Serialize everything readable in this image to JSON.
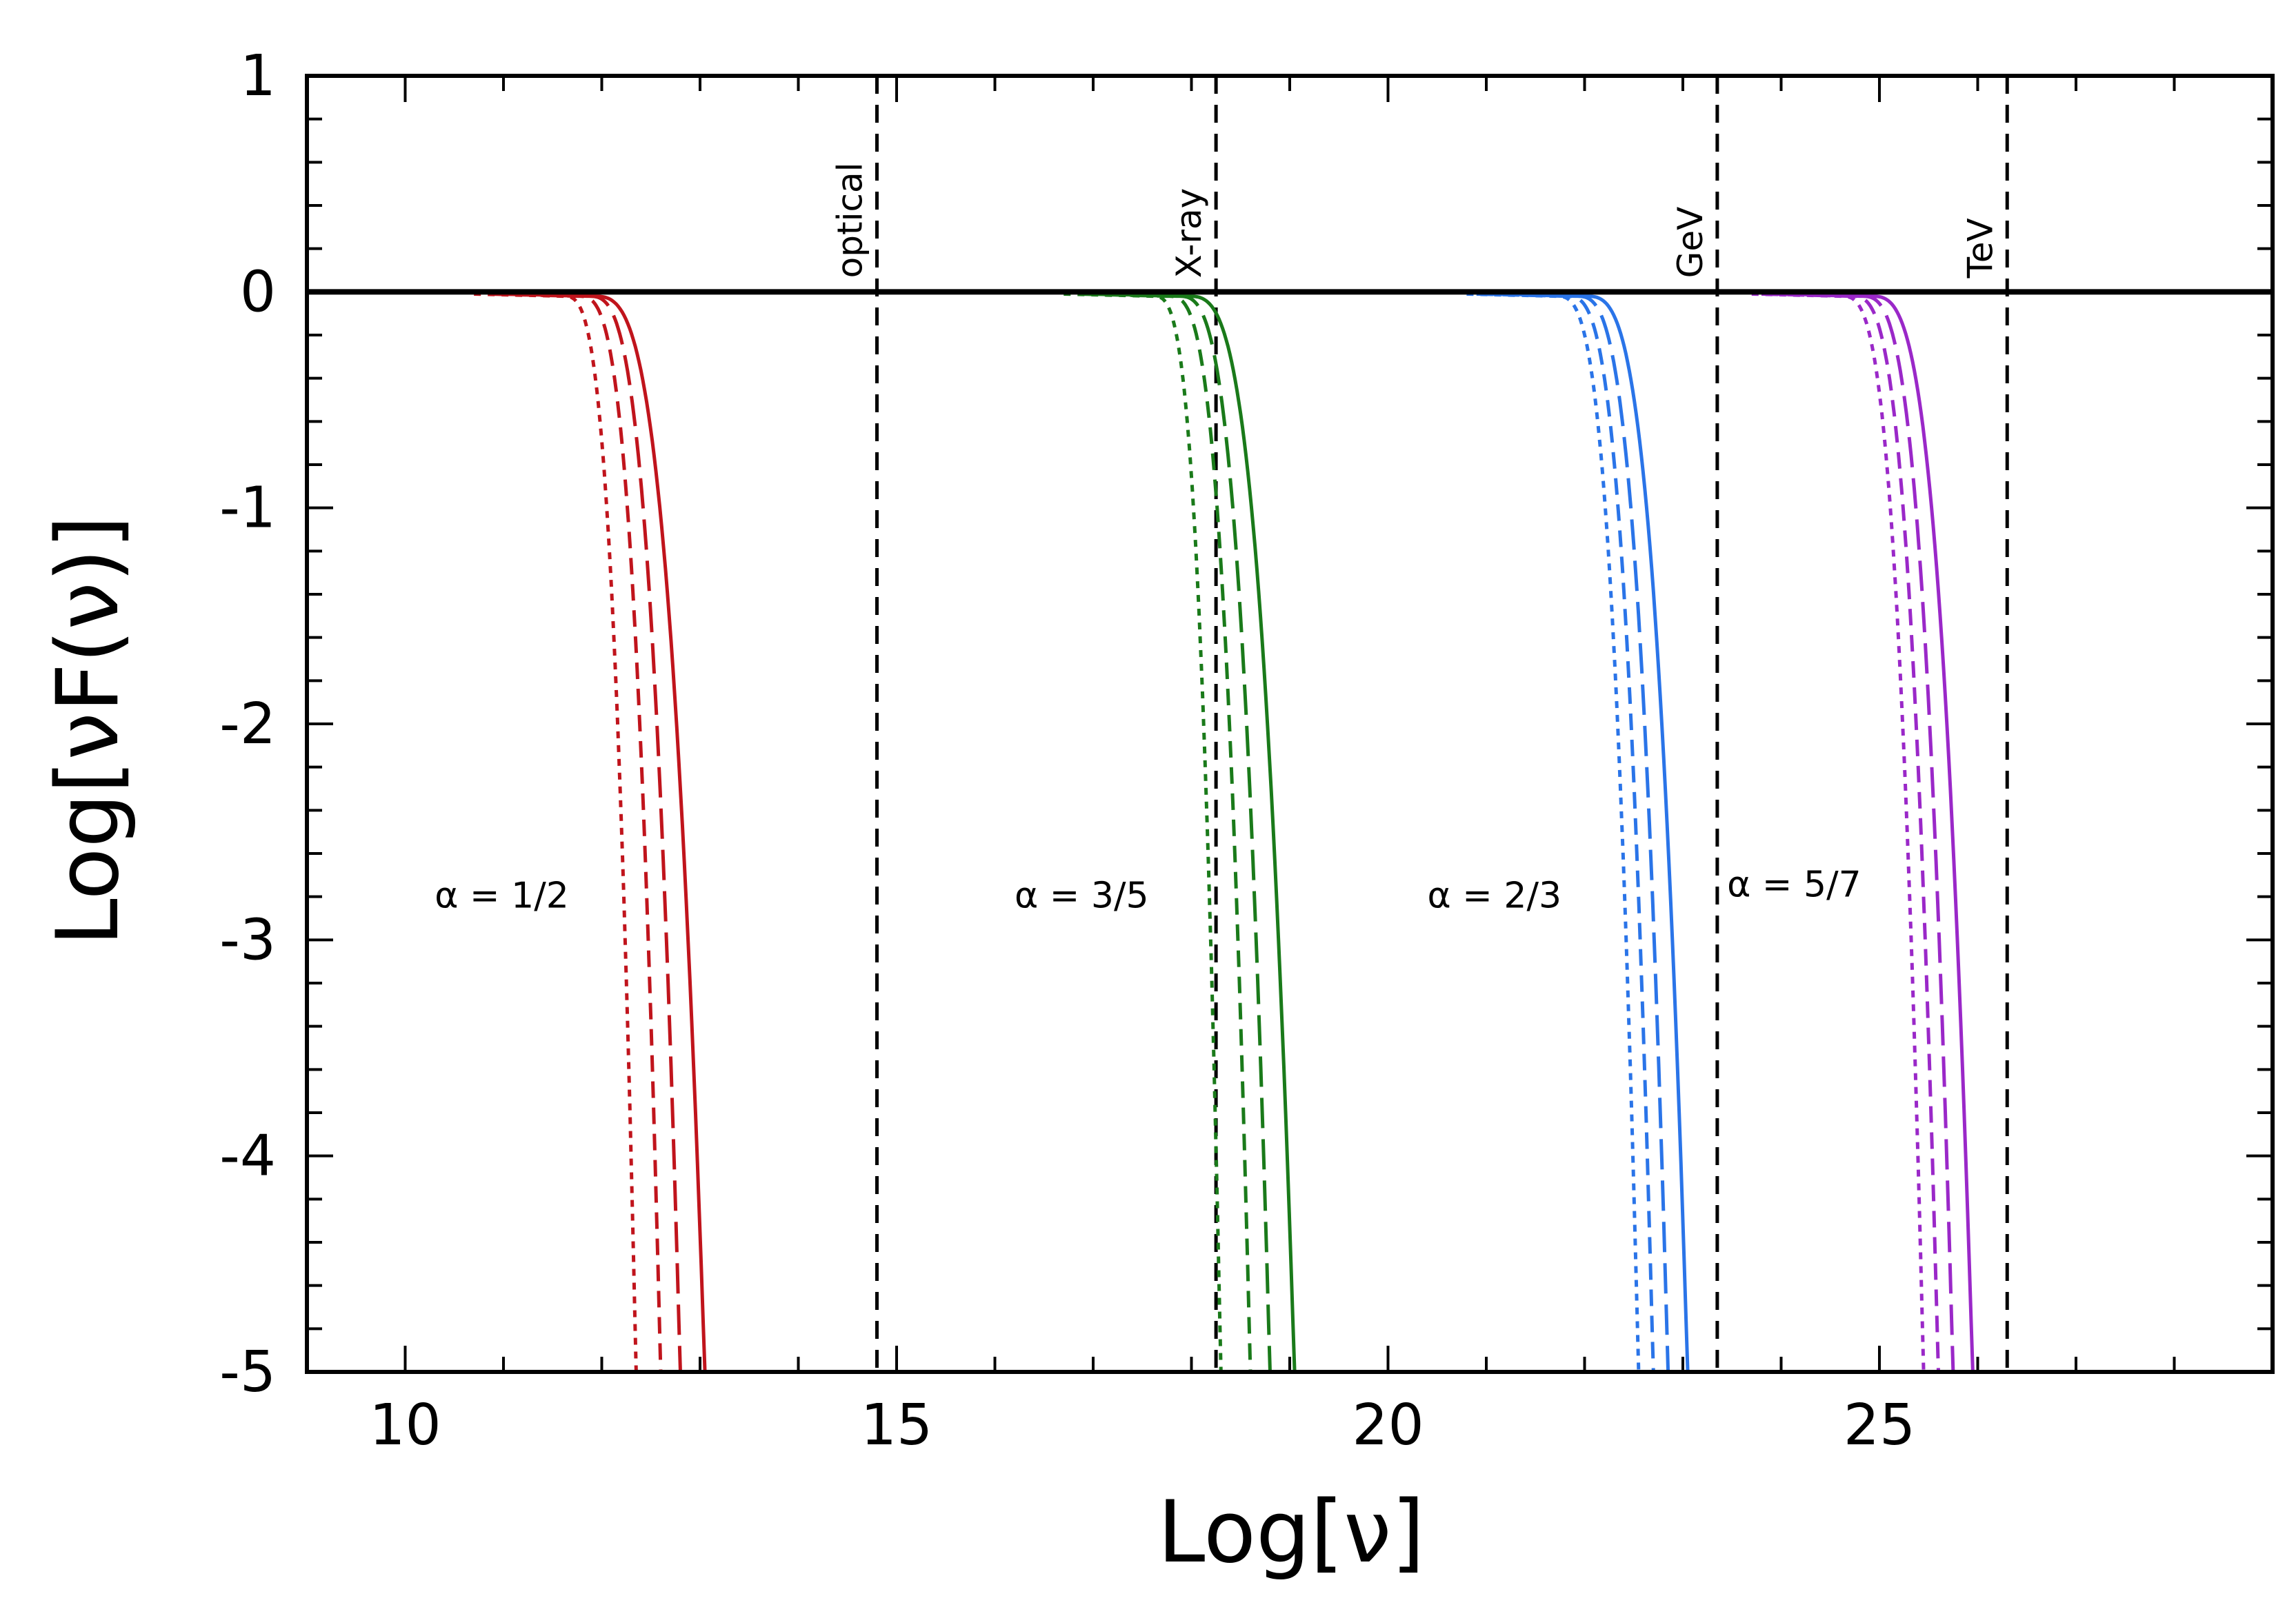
{
  "chart_data": {
    "type": "line",
    "title": "",
    "xlabel": "Log[ν]",
    "ylabel": "Log[νF(ν)]",
    "xlim": [
      9,
      29
    ],
    "ylim": [
      -5,
      1
    ],
    "x_ticks": [
      10,
      15,
      20,
      25
    ],
    "x_tick_labels": [
      "10",
      "15",
      "20",
      "25"
    ],
    "y_ticks": [
      1,
      0,
      -1,
      -2,
      -3,
      -4,
      -5
    ],
    "y_tick_labels": [
      "1",
      "0",
      "-1",
      "-2",
      "-3",
      "-4",
      "-5"
    ],
    "grid": false,
    "reference_line": {
      "y": 0,
      "color": "#000000"
    },
    "bands": [
      {
        "name": "optical",
        "x": 14.8
      },
      {
        "name": "X-ray",
        "x": 18.25
      },
      {
        "name": "GeV",
        "x": 23.35
      },
      {
        "name": "TeV",
        "x": 26.3
      }
    ],
    "groups": [
      {
        "alpha": "α = 1/2",
        "label_x": 10.3,
        "label_y": -2.85,
        "color": "#c0141c",
        "series": [
          {
            "name": "solid",
            "dash": "solid",
            "x0": 11.9,
            "x_end": 13.05
          },
          {
            "name": "long-dash",
            "dash": "long",
            "x0": 11.85,
            "x_end": 12.8
          },
          {
            "name": "medium-dash",
            "dash": "medium",
            "x0": 11.75,
            "x_end": 12.6
          },
          {
            "name": "dotted",
            "dash": "short",
            "x0": 11.6,
            "x_end": 12.35
          }
        ]
      },
      {
        "alpha": "α = 3/5",
        "label_x": 16.2,
        "label_y": -2.85,
        "color": "#1a7a1a",
        "series": [
          {
            "name": "solid",
            "dash": "solid",
            "x0": 17.95,
            "x_end": 19.05
          },
          {
            "name": "long-dash",
            "dash": "long",
            "x0": 17.85,
            "x_end": 18.8
          },
          {
            "name": "medium-dash",
            "dash": "medium",
            "x0": 17.75,
            "x_end": 18.6
          },
          {
            "name": "dotted",
            "dash": "short",
            "x0": 17.6,
            "x_end": 18.3
          }
        ]
      },
      {
        "alpha": "α = 2/3",
        "label_x": 20.4,
        "label_y": -2.85,
        "color": "#2a74e8",
        "series": [
          {
            "name": "solid",
            "dash": "solid",
            "x0": 22.0,
            "x_end": 23.05
          },
          {
            "name": "long-dash",
            "dash": "long",
            "x0": 21.9,
            "x_end": 22.85
          },
          {
            "name": "medium-dash",
            "dash": "medium",
            "x0": 21.8,
            "x_end": 22.7
          },
          {
            "name": "dotted",
            "dash": "short",
            "x0": 21.7,
            "x_end": 22.55
          }
        ]
      },
      {
        "alpha": "α = 5/7",
        "label_x": 23.45,
        "label_y": -2.8,
        "color": "#9a28c8",
        "series": [
          {
            "name": "solid",
            "dash": "solid",
            "x0": 24.9,
            "x_end": 25.95
          },
          {
            "name": "long-dash",
            "dash": "long",
            "x0": 24.8,
            "x_end": 25.75
          },
          {
            "name": "medium-dash",
            "dash": "medium",
            "x0": 24.7,
            "x_end": 25.6
          },
          {
            "name": "dotted",
            "dash": "short",
            "x0": 24.6,
            "x_end": 25.45
          }
        ]
      }
    ]
  }
}
